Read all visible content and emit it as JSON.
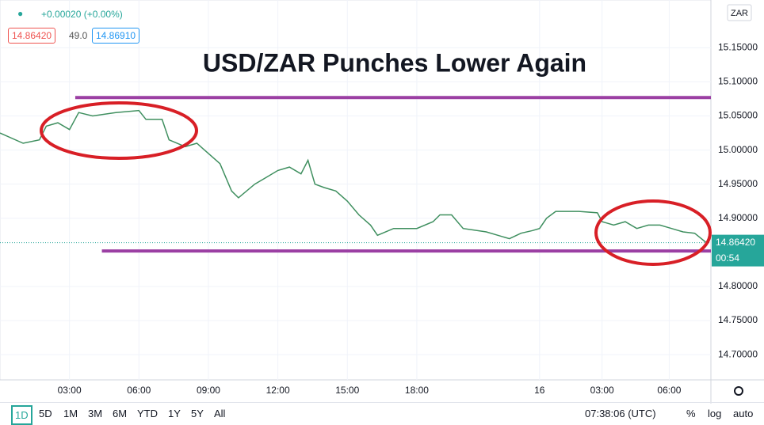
{
  "header": {
    "change": "+0.00020 (+0.00%)",
    "bid": "14.86420",
    "spread": "49.0",
    "ask": "14.86910",
    "currency": "ZAR"
  },
  "chart_data": {
    "type": "line",
    "title": "USD/ZAR Punches Lower Again",
    "x": [
      0,
      1,
      1.7,
      2,
      2.5,
      3,
      3.4,
      4,
      5,
      6,
      6.3,
      7,
      7.3,
      8,
      8.5,
      9,
      9.5,
      10,
      10.3,
      11,
      11.5,
      12,
      12.5,
      13,
      13.3,
      13.6,
      14,
      14.5,
      15,
      15.5,
      16,
      16.3,
      17,
      18,
      18.7,
      19,
      19.5,
      20,
      21,
      21.5,
      22,
      22.5,
      23,
      23.3,
      23.6,
      24,
      25,
      25.8,
      26,
      26.5,
      27,
      27.5,
      28,
      28.5,
      29,
      29.5,
      30,
      30.5
    ],
    "values": [
      15.025,
      15.01,
      15.015,
      15.035,
      15.04,
      15.03,
      15.055,
      15.05,
      15.055,
      15.058,
      15.045,
      15.045,
      15.015,
      15.005,
      15.01,
      14.995,
      14.98,
      14.94,
      14.93,
      14.95,
      14.96,
      14.97,
      14.975,
      14.965,
      14.985,
      14.95,
      14.945,
      14.94,
      14.925,
      14.905,
      14.89,
      14.875,
      14.885,
      14.885,
      14.895,
      14.905,
      14.905,
      14.885,
      14.88,
      14.875,
      14.87,
      14.878,
      14.882,
      14.885,
      14.9,
      14.91,
      14.91,
      14.908,
      14.895,
      14.89,
      14.895,
      14.885,
      14.89,
      14.89,
      14.885,
      14.88,
      14.878,
      14.8642
    ],
    "color": "#3f8f5f",
    "xlim": [
      0,
      30.7
    ],
    "ylim": [
      14.663,
      15.22
    ],
    "xticks": [
      {
        "value": 3,
        "label": "03:00"
      },
      {
        "value": 6,
        "label": "06:00"
      },
      {
        "value": 9,
        "label": "09:00"
      },
      {
        "value": 12,
        "label": "12:00"
      },
      {
        "value": 15,
        "label": "15:00"
      },
      {
        "value": 18,
        "label": "18:00"
      },
      {
        "value": 23.3,
        "label": "16"
      },
      {
        "value": 26,
        "label": "03:00"
      },
      {
        "value": 28.9,
        "label": "06:00"
      }
    ],
    "yticks": [
      {
        "value": 14.7,
        "label": "14.70000"
      },
      {
        "value": 14.75,
        "label": "14.75000"
      },
      {
        "value": 14.8,
        "label": "14.80000"
      },
      {
        "value": 14.9,
        "label": "14.90000"
      },
      {
        "value": 14.95,
        "label": "14.95000"
      },
      {
        "value": 15,
        "label": "15.00000"
      },
      {
        "value": 15.05,
        "label": "15.05000"
      },
      {
        "value": 15.1,
        "label": "15.10000"
      },
      {
        "value": 15.15,
        "label": "15.15000"
      }
    ],
    "grid": true,
    "hlines": [
      {
        "value": 15.077,
        "from": 3.25
      },
      {
        "value": 14.852,
        "from": 4.4
      }
    ],
    "hline_color": "#9b3fa3",
    "last_price_label": "14.86420",
    "countdown": "00:54",
    "badge_color": "#26a69a"
  },
  "toolbar": {
    "ranges": [
      "1D",
      "5D",
      "1M",
      "3M",
      "6M",
      "YTD",
      "1Y",
      "5Y",
      "All"
    ],
    "clock": "07:38:06 (UTC)",
    "options": [
      "%",
      "log",
      "auto"
    ]
  }
}
